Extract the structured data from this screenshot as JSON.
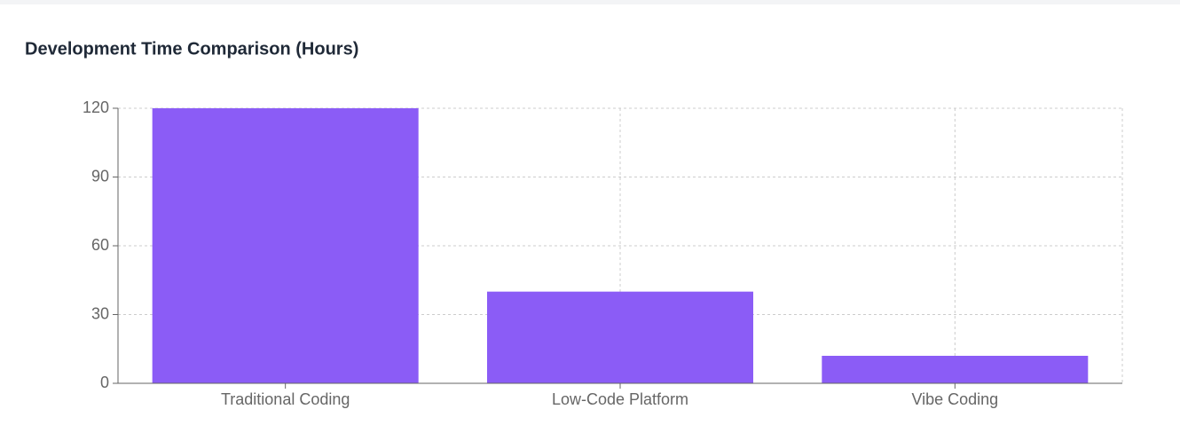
{
  "chart_data": {
    "type": "bar",
    "title": "Development Time Comparison (Hours)",
    "categories": [
      "Traditional Coding",
      "Low-Code Platform",
      "Vibe Coding"
    ],
    "values": [
      120,
      40,
      12
    ],
    "color": "#8b5cf6",
    "ylim": [
      0,
      120
    ],
    "yticks": [
      0,
      30,
      60,
      90,
      120
    ],
    "grid": true
  }
}
